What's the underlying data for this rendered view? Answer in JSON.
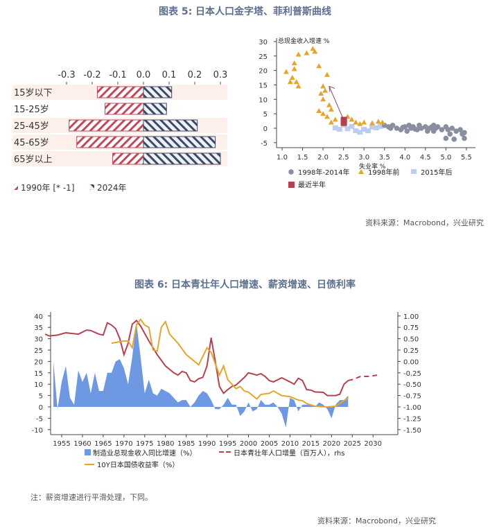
{
  "figure5": {
    "title": "图表 5:  日本人口金字塔、菲利普斯曲线",
    "source": "资料来源：Macrobond，兴业研究"
  },
  "figure6": {
    "title": "图表 6:  日本青壮年人口增速、薪资增速、日债利率",
    "note": "注：薪资增速进行平滑处理，下同。",
    "source": "资料来源：Macrobond，兴业研究"
  },
  "colors": {
    "red": "#b5404f",
    "navy": "#3d4a66",
    "orange": "#e3a52e",
    "blue": "#6f98e3",
    "gray": "#8a8fa0",
    "lightblue": "#bccdf0",
    "title": "#5c6f8c"
  },
  "chart_data": [
    {
      "type": "bar",
      "subtype": "population-pyramid",
      "xlim": [
        -0.3,
        0.3
      ],
      "xticks": [
        "-0.3",
        "-0.2",
        "-0.1",
        "0.0",
        "0.1",
        "0.2",
        "0.3"
      ],
      "categories": [
        "15岁以下",
        "15-25岁",
        "25-45岁",
        "45-65岁",
        "65岁以上"
      ],
      "series": [
        {
          "name": "1990年 [* -1]",
          "values": [
            -0.18,
            -0.15,
            -0.29,
            -0.26,
            -0.12
          ]
        },
        {
          "name": "2024年",
          "values": [
            0.11,
            0.09,
            0.21,
            0.28,
            0.3
          ]
        }
      ],
      "legend": "bottom-left"
    },
    {
      "type": "scatter",
      "xlabel": "失业率 %",
      "ylabel": "总现金收入增速 %",
      "xlim": [
        1.0,
        5.5
      ],
      "ylim": [
        -5,
        30
      ],
      "xticks": [
        "1.0",
        "1.5",
        "2.0",
        "2.5",
        "3.0",
        "3.5",
        "4.0",
        "4.5",
        "5.0",
        "5.5"
      ],
      "yticks": [
        "30",
        "25",
        "20",
        "15",
        "10",
        "5",
        "0",
        "-5"
      ],
      "series": [
        {
          "name": "1998年-2014年",
          "marker": "circle",
          "points": [
            [
              3.5,
              1
            ],
            [
              3.6,
              0.5
            ],
            [
              3.7,
              1
            ],
            [
              3.8,
              0
            ],
            [
              3.9,
              -0.5
            ],
            [
              4.0,
              0.5
            ],
            [
              4.05,
              -1
            ],
            [
              4.1,
              1
            ],
            [
              4.15,
              0
            ],
            [
              4.2,
              0.5
            ],
            [
              4.3,
              -0.5
            ],
            [
              4.35,
              1
            ],
            [
              4.4,
              0
            ],
            [
              4.5,
              0.5
            ],
            [
              4.55,
              -1
            ],
            [
              4.6,
              0
            ],
            [
              4.7,
              1
            ],
            [
              4.7,
              -1
            ],
            [
              4.75,
              0
            ],
            [
              4.8,
              0.5
            ],
            [
              4.9,
              -0.5
            ],
            [
              5.0,
              0.5
            ],
            [
              5.05,
              -0.5
            ],
            [
              5.1,
              -2
            ],
            [
              5.0,
              -3.5
            ],
            [
              5.2,
              -3.8
            ],
            [
              5.25,
              -1
            ],
            [
              5.35,
              -0.5
            ],
            [
              5.4,
              -2
            ],
            [
              5.45,
              -1.5
            ],
            [
              5.45,
              -3.5
            ],
            [
              3.65,
              0
            ],
            [
              3.95,
              0.3
            ],
            [
              4.25,
              -0.3
            ],
            [
              4.65,
              0.4
            ],
            [
              5.15,
              0
            ]
          ]
        },
        {
          "name": "1998年前",
          "marker": "triangle",
          "points": [
            [
              1.1,
              19.5
            ],
            [
              1.2,
              16
            ],
            [
              1.25,
              17.5
            ],
            [
              1.3,
              22.5
            ],
            [
              1.3,
              20.5
            ],
            [
              1.35,
              16
            ],
            [
              1.4,
              14.5
            ],
            [
              1.4,
              25.5
            ],
            [
              1.6,
              26
            ],
            [
              1.75,
              27.5
            ],
            [
              1.8,
              26.5
            ],
            [
              1.9,
              21.5
            ],
            [
              2.1,
              18.5
            ],
            [
              2.0,
              14.5
            ],
            [
              2.05,
              13
            ],
            [
              1.95,
              12
            ],
            [
              2.0,
              10
            ],
            [
              1.9,
              6
            ],
            [
              2.0,
              5
            ],
            [
              2.1,
              4
            ],
            [
              2.2,
              6.5
            ],
            [
              2.3,
              3
            ],
            [
              2.2,
              2
            ],
            [
              2.6,
              4
            ],
            [
              2.7,
              3
            ],
            [
              2.8,
              2
            ],
            [
              2.9,
              1.5
            ],
            [
              3.0,
              2
            ],
            [
              3.2,
              1.8
            ],
            [
              3.35,
              2.3
            ],
            [
              3.45,
              2
            ],
            [
              2.15,
              8
            ]
          ]
        },
        {
          "name": "2015年后",
          "marker": "square",
          "points": [
            [
              2.3,
              0
            ],
            [
              2.4,
              -0.5
            ],
            [
              2.5,
              1
            ],
            [
              2.6,
              -0.3
            ],
            [
              2.7,
              0.5
            ],
            [
              2.8,
              -1
            ],
            [
              2.9,
              -1.5
            ],
            [
              3.0,
              -0.5
            ],
            [
              3.1,
              -1
            ],
            [
              3.2,
              0.3
            ],
            [
              3.3,
              0
            ],
            [
              3.4,
              0.5
            ]
          ]
        },
        {
          "name": "最近半年",
          "marker": "square",
          "points": [
            [
              2.5,
              3
            ],
            [
              2.5,
              2
            ]
          ]
        }
      ],
      "annotation": "arrow from (2.5,3) to (2.15,14.5)",
      "legend": "bottom"
    },
    {
      "type": "area+line",
      "xlim": [
        1951,
        2030
      ],
      "xticks": [
        "1955",
        "1960",
        "1965",
        "1970",
        "1975",
        "1980",
        "1985",
        "1990",
        "1995",
        "2000",
        "2005",
        "2010",
        "2015",
        "2020",
        "2025",
        "2030"
      ],
      "ylim": [
        -10,
        40
      ],
      "yticks": [
        "40",
        "35",
        "30",
        "25",
        "20",
        "15",
        "10",
        "5",
        "0",
        "-5",
        "-10"
      ],
      "y2lim": [
        -1.5,
        1.0
      ],
      "y2ticks": [
        "1.00",
        "0.75",
        "0.50",
        "0.25",
        "0.00",
        "-0.25",
        "-0.50",
        "-0.75",
        "-1.00",
        "-1.25",
        "-1.50"
      ],
      "series": [
        {
          "name": "制造业总现金收入同比增速（%）",
          "type": "area",
          "axis": "left",
          "start": 1953,
          "values": [
            20,
            -1,
            11,
            18,
            4,
            1,
            16,
            11,
            15,
            6,
            15,
            7,
            7,
            15,
            15,
            20,
            21,
            17,
            10,
            22,
            37,
            22,
            6,
            12,
            6,
            5,
            8,
            7,
            6,
            4,
            2,
            3,
            3,
            0,
            2,
            5,
            7,
            6,
            3,
            -1,
            -1,
            1,
            4,
            1,
            1,
            -4,
            -2,
            2,
            -2,
            -1,
            3,
            1,
            1,
            2,
            0,
            -3,
            -9,
            4,
            3,
            -2,
            1,
            1,
            1,
            0,
            2,
            1,
            -1,
            -5,
            1,
            3,
            3,
            5
          ]
        },
        {
          "name": "日本青壮年人口增量（百万人），rhs",
          "type": "line",
          "axis": "right",
          "points": [
            [
              1951,
              0.6
            ],
            [
              1952,
              0.56
            ],
            [
              1954,
              0.58
            ],
            [
              1956,
              0.63
            ],
            [
              1958,
              0.61
            ],
            [
              1959,
              0.6
            ],
            [
              1961,
              0.69
            ],
            [
              1962,
              0.68
            ],
            [
              1964,
              0.6
            ],
            [
              1965,
              0.58
            ],
            [
              1966,
              0.85
            ],
            [
              1967,
              0.8
            ],
            [
              1968,
              0.72
            ],
            [
              1969,
              0.5
            ],
            [
              1970,
              0.15
            ],
            [
              1971,
              0.4
            ],
            [
              1972,
              0.82
            ],
            [
              1973,
              0.9
            ],
            [
              1974,
              0.78
            ],
            [
              1976,
              0.45
            ],
            [
              1978,
              0.15
            ],
            [
              1980,
              -0.1
            ],
            [
              1982,
              -0.25
            ],
            [
              1983,
              -0.3
            ],
            [
              1984,
              -0.22
            ],
            [
              1985,
              -0.25
            ],
            [
              1986,
              -0.42
            ],
            [
              1987,
              -0.45
            ],
            [
              1988,
              -0.38
            ],
            [
              1989,
              -0.35
            ],
            [
              1990,
              -0.1
            ],
            [
              1991,
              0.52
            ],
            [
              1992,
              0.0
            ],
            [
              1993,
              -0.55
            ],
            [
              1994,
              -0.7
            ],
            [
              1995,
              -0.62
            ],
            [
              1996,
              -0.55
            ],
            [
              1997,
              -0.52
            ],
            [
              1999,
              -0.35
            ],
            [
              2000,
              -0.25
            ],
            [
              2002,
              -0.3
            ],
            [
              2003,
              -0.27
            ],
            [
              2004,
              -0.33
            ],
            [
              2005,
              -0.42
            ],
            [
              2006,
              -0.45
            ],
            [
              2008,
              -0.36
            ],
            [
              2010,
              -0.45
            ],
            [
              2011,
              -0.5
            ],
            [
              2012,
              -0.37
            ],
            [
              2013,
              -0.42
            ],
            [
              2014,
              -0.62
            ],
            [
              2015,
              -0.63
            ],
            [
              2016,
              -0.67
            ],
            [
              2018,
              -0.68
            ],
            [
              2019,
              -0.75
            ],
            [
              2021,
              -0.75
            ],
            [
              2022,
              -0.72
            ],
            [
              2023,
              -0.5
            ],
            [
              2024,
              -0.42
            ]
          ]
        },
        {
          "name": "日本青壮年人口增量（百万人），rhs (projection)",
          "type": "dashed",
          "axis": "right",
          "points": [
            [
              2024,
              -0.42
            ],
            [
              2025,
              -0.4
            ],
            [
              2027,
              -0.33
            ],
            [
              2029,
              -0.33
            ],
            [
              2031,
              -0.3
            ]
          ]
        },
        {
          "name": "10Y日本国债收益率（%）",
          "type": "line",
          "axis": "left",
          "points": [
            [
              1967,
              28
            ],
            [
              1970,
              29
            ],
            [
              1971,
              29
            ],
            [
              1972,
              26
            ],
            [
              1973,
              36
            ],
            [
              1974,
              38.5
            ],
            [
              1975,
              36
            ],
            [
              1976,
              35
            ],
            [
              1977,
              25
            ],
            [
              1978,
              24.5
            ],
            [
              1979,
              35
            ],
            [
              1980,
              37.5
            ],
            [
              1981,
              32
            ],
            [
              1983,
              28
            ],
            [
              1985,
              23
            ],
            [
              1988,
              18.5
            ],
            [
              1990,
              26
            ],
            [
              1991,
              24
            ],
            [
              1993,
              14
            ],
            [
              1994,
              18
            ],
            [
              1995,
              12
            ],
            [
              1997,
              8
            ],
            [
              1998,
              9
            ],
            [
              1999,
              7
            ],
            [
              2000,
              6.5
            ],
            [
              2002,
              3.5
            ],
            [
              2003,
              5.5
            ],
            [
              2005,
              6
            ],
            [
              2006,
              7
            ],
            [
              2008,
              5
            ],
            [
              2010,
              4.5
            ],
            [
              2012,
              3
            ],
            [
              2013,
              2.7
            ],
            [
              2014,
              1.5
            ],
            [
              2016,
              0.3
            ],
            [
              2019,
              0
            ],
            [
              2021,
              0.3
            ],
            [
              2024,
              4
            ]
          ]
        }
      ],
      "legend": "bottom"
    }
  ]
}
